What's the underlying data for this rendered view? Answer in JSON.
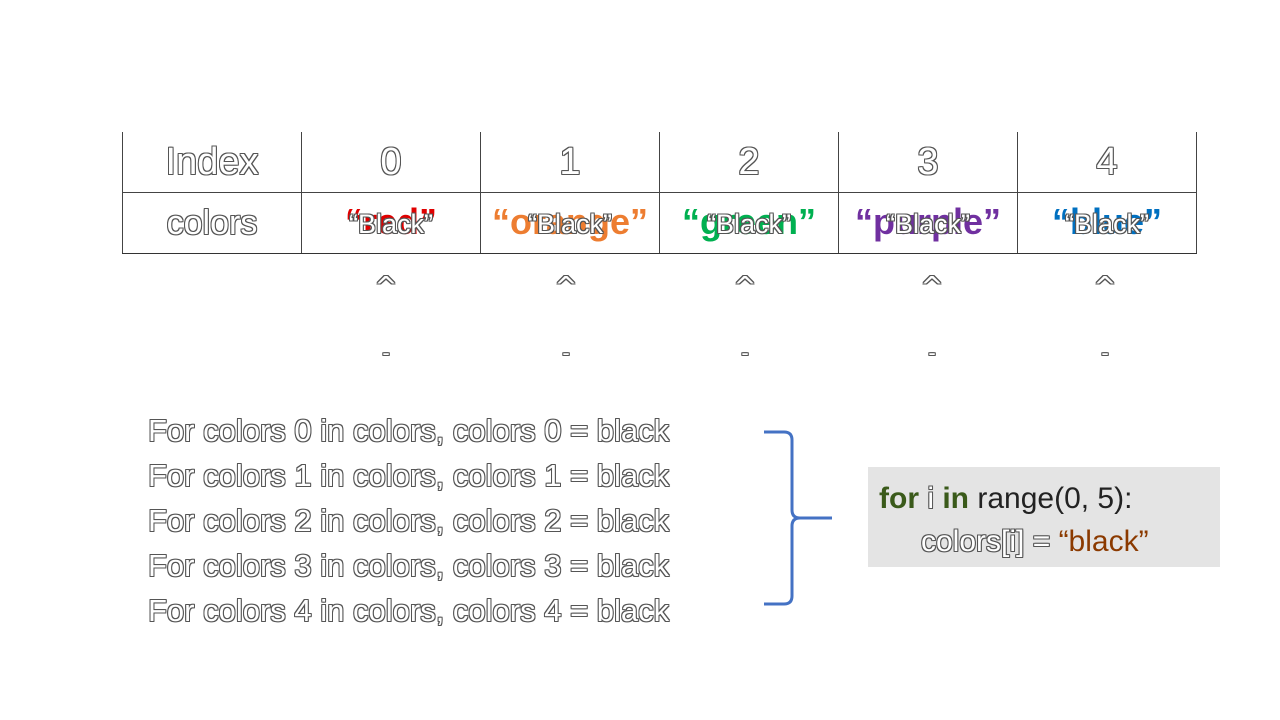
{
  "table": {
    "row_index_label": "Index",
    "row_colors_label": "colors",
    "indices": [
      "0",
      "1",
      "2",
      "3",
      "4"
    ],
    "original_values": [
      {
        "text": "“red”",
        "color": "#e00000"
      },
      {
        "text": "“orange”",
        "color": "#ed7d31"
      },
      {
        "text": "“green”",
        "color": "#00b050"
      },
      {
        "text": "“purple”",
        "color": "#7030a0"
      },
      {
        "text": "“blue”",
        "color": "#0070c0"
      }
    ],
    "new_value": "“Black”"
  },
  "pointers": {
    "caret": "^",
    "dash": "-"
  },
  "loop_lines": [
    "For colors 0 in colors, colors 0 = black",
    "For colors 1 in colors, colors 1 = black",
    "For colors 2 in colors, colors 2 = black",
    "For colors 3 in colors, colors 3 = black",
    "For colors 4 in colors, colors 4 = black"
  ],
  "code": {
    "kw_for": "for",
    "var_i": " i ",
    "kw_in": "in",
    "range_call": " range(0, 5):",
    "target": "colors[i] = ",
    "string": "“black”"
  },
  "colors": {
    "brace": "#4472c4",
    "code_bg": "#e4e4e4",
    "keyword": "#3a5a1a",
    "string": "#8b3a00"
  }
}
